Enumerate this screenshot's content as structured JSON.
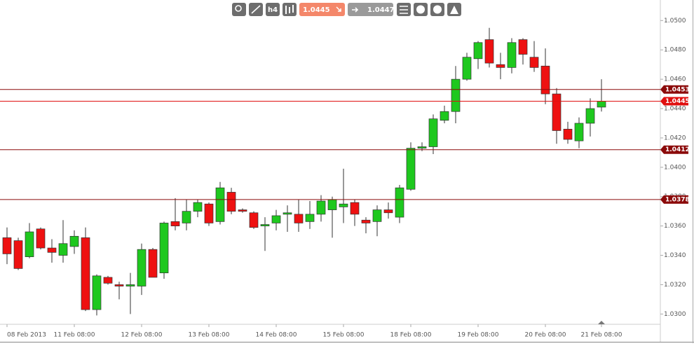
{
  "toolbar": {
    "timeframe": "h4",
    "sell": "1.0445",
    "buy": "1.0447"
  },
  "chart_data": {
    "type": "candlestick",
    "categories": [
      "08 Feb 2013",
      null,
      null,
      null,
      null,
      null,
      "11 Feb 08:00",
      null,
      null,
      null,
      null,
      null,
      "12 Feb 08:00",
      null,
      null,
      null,
      null,
      null,
      "13 Feb 08:00",
      null,
      null,
      null,
      null,
      null,
      "14 Feb 08:00",
      null,
      null,
      null,
      null,
      null,
      "15 Feb 08:00",
      null,
      null,
      null,
      null,
      null,
      "18 Feb 08:00",
      null,
      null,
      null,
      null,
      null,
      "19 Feb 08:00",
      null,
      null,
      null,
      null,
      null,
      "20 Feb 08:00",
      null,
      null,
      null,
      null,
      "21 Feb 08:00"
    ],
    "open": [
      1.0352,
      1.035,
      1.0339,
      1.0358,
      1.0345,
      1.034,
      1.0346,
      1.0352,
      1.0303,
      1.0325,
      1.032,
      1.0319,
      1.0319,
      1.0344,
      1.0328,
      1.0363,
      1.0362,
      1.037,
      1.0375,
      1.0363,
      1.0383,
      1.0371,
      1.0369,
      1.036,
      1.0362,
      1.0368,
      1.0368,
      1.0363,
      1.0368,
      1.0371,
      1.0373,
      1.0376,
      1.0364,
      1.0363,
      1.0371,
      1.0366,
      1.0385,
      1.0413,
      1.0414,
      1.0432,
      1.0438,
      1.046,
      1.0474,
      1.0487,
      1.047,
      1.0468,
      1.0487,
      1.0475,
      1.0469,
      1.045,
      1.0426,
      1.0418,
      1.043,
      1.0441
    ],
    "high": [
      1.0359,
      1.0352,
      1.0362,
      1.0359,
      1.0351,
      1.0364,
      1.0357,
      1.0359,
      1.0327,
      1.0326,
      1.0322,
      1.0328,
      1.0348,
      1.0345,
      1.0363,
      1.0379,
      1.0378,
      1.0378,
      1.0376,
      1.039,
      1.0386,
      1.0372,
      1.037,
      1.0366,
      1.0371,
      1.0374,
      1.0378,
      1.0377,
      1.0381,
      1.038,
      1.0399,
      1.0378,
      1.0366,
      1.0374,
      1.0376,
      1.0388,
      1.0417,
      1.0417,
      1.0436,
      1.0442,
      1.0469,
      1.0478,
      1.0486,
      1.0495,
      1.0478,
      1.0488,
      1.0488,
      1.0486,
      1.0481,
      1.0454,
      1.0431,
      1.0434,
      1.0447,
      1.046
    ],
    "low": [
      1.0334,
      1.033,
      1.0338,
      1.0344,
      1.0335,
      1.0335,
      1.0341,
      1.0302,
      1.0299,
      1.032,
      1.031,
      1.03,
      1.0313,
      1.0325,
      1.0324,
      1.0357,
      1.0357,
      1.0366,
      1.036,
      1.0361,
      1.0368,
      1.0369,
      1.0358,
      1.0343,
      1.0357,
      1.0356,
      1.0356,
      1.0358,
      1.0363,
      1.0352,
      1.0362,
      1.036,
      1.0355,
      1.0353,
      1.0365,
      1.0362,
      1.0384,
      1.0411,
      1.0409,
      1.043,
      1.043,
      1.0459,
      1.0467,
      1.0468,
      1.046,
      1.0464,
      1.047,
      1.0465,
      1.0443,
      1.0416,
      1.0416,
      1.0413,
      1.0421,
      1.0438
    ],
    "close": [
      1.0341,
      1.0331,
      1.0356,
      1.0345,
      1.0342,
      1.0348,
      1.0353,
      1.0303,
      1.0326,
      1.0321,
      1.0319,
      1.032,
      1.0344,
      1.0325,
      1.0362,
      1.036,
      1.037,
      1.0376,
      1.0362,
      1.0386,
      1.037,
      1.037,
      1.0359,
      1.0361,
      1.0367,
      1.0369,
      1.0362,
      1.0368,
      1.0377,
      1.0378,
      1.0375,
      1.0368,
      1.0362,
      1.0371,
      1.0369,
      1.0386,
      1.0413,
      1.0414,
      1.0433,
      1.0438,
      1.046,
      1.0475,
      1.0485,
      1.0471,
      1.0468,
      1.0485,
      1.0477,
      1.0468,
      1.045,
      1.0425,
      1.0419,
      1.043,
      1.044,
      1.0445
    ],
    "up_color": "#1ec81e",
    "down_color": "#ee1111",
    "ylim": [
      1.0293,
      1.0514
    ],
    "yticks": [
      {
        "value": 1.03,
        "label": "1.0300"
      },
      {
        "value": 1.032,
        "label": "1.0320"
      },
      {
        "value": 1.034,
        "label": "1.0340"
      },
      {
        "value": 1.036,
        "label": "1.0360"
      },
      {
        "value": 1.038,
        "label": "1.0380"
      },
      {
        "value": 1.04,
        "label": "1.0400"
      },
      {
        "value": 1.042,
        "label": "1.0420"
      },
      {
        "value": 1.044,
        "label": "1.0440"
      },
      {
        "value": 1.046,
        "label": "1.0460"
      },
      {
        "value": 1.048,
        "label": "1.0480"
      },
      {
        "value": 1.05,
        "label": "1.0500"
      }
    ],
    "levels": [
      {
        "value": 1.0453,
        "color": "#8b0a0a"
      },
      {
        "value": 1.0445,
        "color": "#e01010"
      },
      {
        "value": 1.0412,
        "color": "#8b0a0a"
      },
      {
        "value": 1.0378,
        "color": "#8b0a0a"
      }
    ]
  }
}
